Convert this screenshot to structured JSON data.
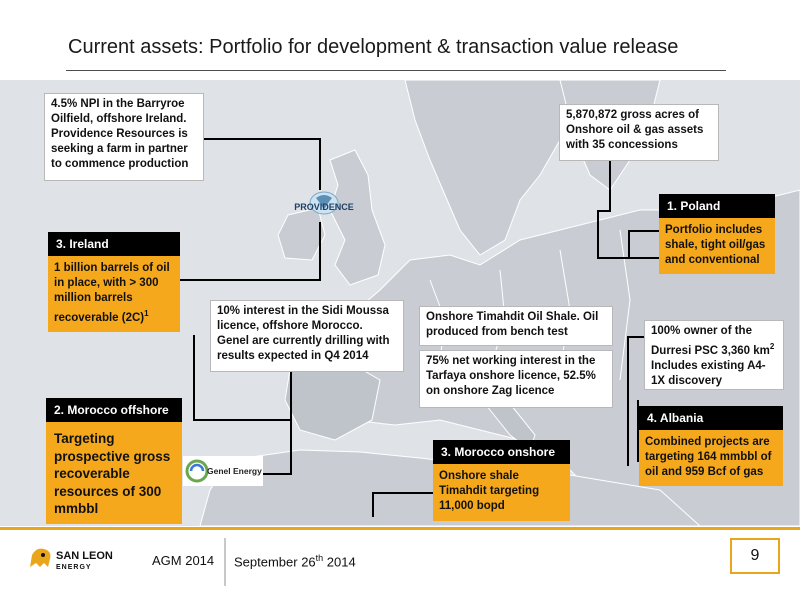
{
  "slide": {
    "title": "Current assets: Portfolio for development & transaction value release"
  },
  "providence": {
    "info": "4.5% NPI in the Barryroe Oilfield, offshore Ireland. Providence Resources is seeking a farm in partner to commence production",
    "logo_text": "PROVIDENCE"
  },
  "ireland": {
    "header": "3. Ireland",
    "body": "1 billion barrels of oil in place, with > 300 million barrels recoverable (2C)",
    "footnote": "1"
  },
  "sidi_moussa": {
    "info": "10% interest in the Sidi Moussa licence, offshore Morocco. Genel are currently drilling with results expected in Q4 2014"
  },
  "morocco_offshore": {
    "header": "2. Morocco offshore",
    "body": "Targeting prospective gross recoverable resources of 300 mmbbl"
  },
  "genel": {
    "logo_text": "Genel Energy"
  },
  "timahdit": {
    "info1": "Onshore Timahdit Oil Shale. Oil produced from bench test",
    "info2": "75% net working interest in the Tarfaya onshore licence, 52.5% on onshore Zag licence"
  },
  "morocco_onshore": {
    "header": "3. Morocco onshore",
    "body": "Onshore shale Timahdit targeting 11,000 bopd"
  },
  "poland_info": {
    "text": "5,870,872 gross acres of Onshore oil & gas assets with 35 concessions"
  },
  "poland": {
    "header": "1. Poland",
    "body": "Portfolio includes shale, tight oil/gas and conventional"
  },
  "albania_info": {
    "text_pre": "100% owner of the Durresi PSC 3,360 km",
    "sup": "2",
    "text_post": " Includes existing A4-1X discovery"
  },
  "albania": {
    "header": "4. Albania",
    "body": "Combined projects are targeting 164 mmbbl of oil and 959 Bcf of gas"
  },
  "footer": {
    "company_line1": "SAN LEON",
    "company_line2": "ENERGY",
    "event": "AGM 2014",
    "date_pre": "September 26",
    "date_sup": "th",
    "date_post": " 2014",
    "page": "9"
  },
  "colors": {
    "accent": "#f5a81c",
    "header_bg": "#000000",
    "map_land": "#c9cdd3",
    "map_sea": "#dfe3e8"
  }
}
